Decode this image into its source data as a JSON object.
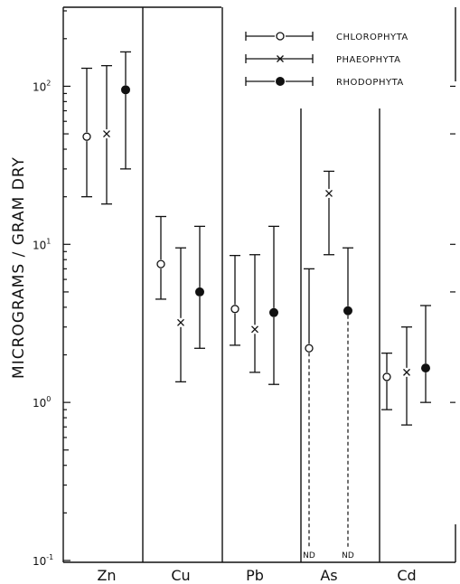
{
  "chart_data": {
    "type": "scatter",
    "ylabel": "MICROGRAMS / GRAM DRY",
    "yscale": "log",
    "ylim": [
      0.1,
      300
    ],
    "y_ticks": [
      {
        "value": 100,
        "base": "10",
        "exp": "2"
      },
      {
        "value": 10,
        "base": "10",
        "exp": "1"
      },
      {
        "value": 1,
        "base": "10",
        "exp": "0"
      },
      {
        "value": 0.1,
        "base": "10",
        "exp": "-1"
      }
    ],
    "categories": [
      "Zn",
      "Cu",
      "Pb",
      "As",
      "Cd"
    ],
    "legend": {
      "position": "top-right",
      "entries": [
        {
          "name": "CHLOROPHYTA",
          "marker": "open-circle"
        },
        {
          "name": "PHAEOPHYTA",
          "marker": "x"
        },
        {
          "name": "RHODOPHYTA",
          "marker": "filled-circle"
        }
      ]
    },
    "series": [
      {
        "name": "CHLOROPHYTA",
        "marker": "open-circle",
        "points": [
          {
            "category": "Zn",
            "y": 48,
            "low": 20,
            "high": 130
          },
          {
            "category": "Cu",
            "y": 7.5,
            "low": 4.5,
            "high": 15
          },
          {
            "category": "Pb",
            "y": 3.9,
            "low": 2.3,
            "high": 8.5
          },
          {
            "category": "As",
            "y": 2.2,
            "low": 0.1,
            "high": 7,
            "low_label": "ND"
          },
          {
            "category": "Cd",
            "y": 1.45,
            "low": 0.9,
            "high": 2.05
          }
        ]
      },
      {
        "name": "PHAEOPHYTA",
        "marker": "x",
        "points": [
          {
            "category": "Zn",
            "y": 50,
            "low": 18,
            "high": 135
          },
          {
            "category": "Cu",
            "y": 3.2,
            "low": 1.35,
            "high": 9.5
          },
          {
            "category": "Pb",
            "y": 2.9,
            "low": 1.55,
            "high": 8.6
          },
          {
            "category": "As",
            "y": 21,
            "low": 8.6,
            "high": 29
          },
          {
            "category": "Cd",
            "y": 1.55,
            "low": 0.72,
            "high": 3.0
          }
        ]
      },
      {
        "name": "RHODOPHYTA",
        "marker": "filled-circle",
        "points": [
          {
            "category": "Zn",
            "y": 95,
            "low": 30,
            "high": 165
          },
          {
            "category": "Cu",
            "y": 5,
            "low": 2.2,
            "high": 13
          },
          {
            "category": "Pb",
            "y": 3.7,
            "low": 1.3,
            "high": 13
          },
          {
            "category": "As",
            "y": 3.8,
            "low": 0.1,
            "high": 9.5,
            "low_label": "ND"
          },
          {
            "category": "Cd",
            "y": 1.65,
            "low": 1.0,
            "high": 4.1
          }
        ]
      }
    ]
  }
}
